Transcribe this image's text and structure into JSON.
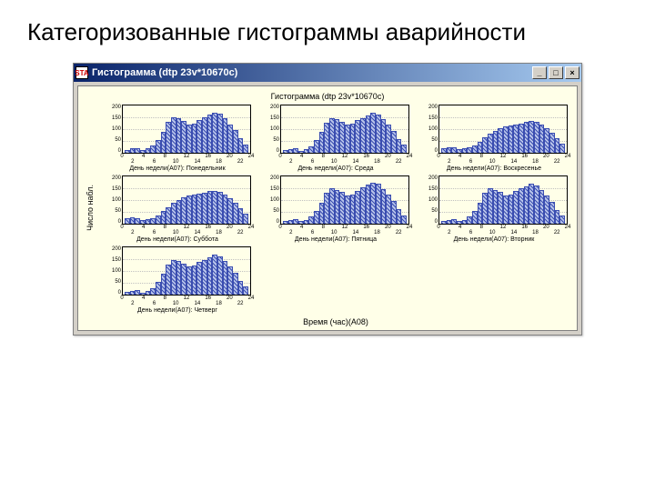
{
  "slide": {
    "title": "Категоризованные гистограммы аварийности"
  },
  "window": {
    "title": "Гистограмма (dtp 23v*10670c)",
    "icon_label": "STA",
    "minimize_char": "_",
    "maximize_char": "□",
    "close_char": "×"
  },
  "plot": {
    "title": "Гистограмма (dtp 23v*10670c)",
    "ylabel": "Число набл.",
    "xlabel": "Время (час)(A08)",
    "background_color": "#ffffe8",
    "grid_color": "#c0c0c0",
    "axis_color": "#000000",
    "bar_border_color": "#3a4db0",
    "bar_fill_color": "#b8c4ea",
    "xlim": [
      0,
      24
    ],
    "ylim": [
      0,
      200
    ],
    "xticks_major": [
      0,
      4,
      8,
      12,
      16,
      20,
      24
    ],
    "xticks_minor": [
      2,
      6,
      10,
      14,
      18,
      22
    ],
    "yticks": [
      200,
      150,
      100,
      50,
      0
    ],
    "gridlines_y": [
      0.25,
      0.5,
      0.75
    ],
    "bar_width": 1.0,
    "panels": [
      {
        "label": "День недели(A07): Понедельник",
        "values": [
          12,
          18,
          20,
          10,
          18,
          30,
          55,
          90,
          130,
          150,
          145,
          135,
          120,
          125,
          140,
          150,
          160,
          170,
          165,
          145,
          120,
          95,
          60,
          35
        ]
      },
      {
        "label": "День недели(A07): Среда",
        "values": [
          10,
          16,
          18,
          9,
          16,
          28,
          52,
          88,
          128,
          148,
          142,
          132,
          118,
          122,
          138,
          148,
          158,
          168,
          162,
          142,
          118,
          92,
          58,
          33
        ]
      },
      {
        "label": "День недели(A07): Воскресенье",
        "values": [
          20,
          25,
          22,
          15,
          18,
          22,
          32,
          48,
          65,
          80,
          92,
          102,
          110,
          115,
          120,
          125,
          130,
          135,
          132,
          120,
          105,
          85,
          62,
          40
        ]
      },
      {
        "label": "День недели(A07): Суббота",
        "values": [
          22,
          28,
          24,
          16,
          18,
          24,
          35,
          52,
          70,
          88,
          100,
          110,
          118,
          122,
          128,
          132,
          138,
          140,
          135,
          122,
          108,
          88,
          65,
          42
        ]
      },
      {
        "label": "День недели(A07): Пятница",
        "values": [
          11,
          17,
          19,
          10,
          17,
          29,
          54,
          89,
          129,
          149,
          144,
          134,
          119,
          124,
          139,
          152,
          165,
          175,
          170,
          148,
          122,
          96,
          60,
          36
        ]
      },
      {
        "label": "День недели(A07): Вторник",
        "values": [
          12,
          17,
          19,
          10,
          17,
          29,
          53,
          89,
          129,
          149,
          143,
          133,
          119,
          123,
          139,
          149,
          159,
          169,
          163,
          143,
          119,
          93,
          59,
          34
        ]
      },
      {
        "label": "День недели(A07): Четверг",
        "values": [
          11,
          16,
          18,
          9,
          16,
          28,
          52,
          88,
          128,
          148,
          142,
          132,
          118,
          122,
          138,
          148,
          158,
          168,
          162,
          142,
          118,
          92,
          58,
          33
        ]
      }
    ]
  }
}
